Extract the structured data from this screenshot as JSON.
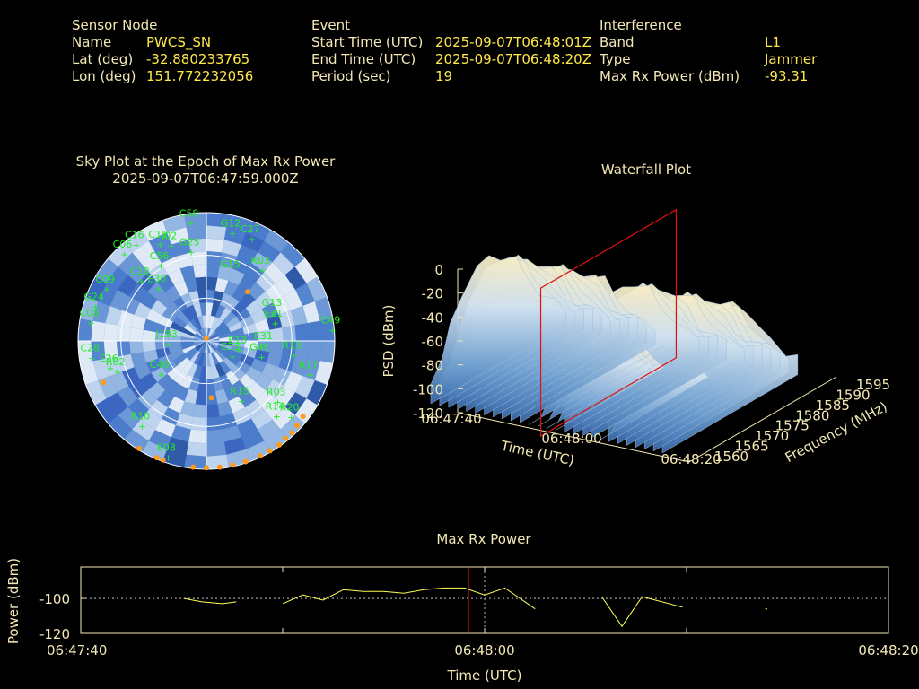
{
  "info": {
    "sensor_node": {
      "header": "Sensor Node",
      "rows": [
        {
          "label": "Name",
          "value": "PWCS_SN"
        },
        {
          "label": "Lat (deg)",
          "value": "-32.880233765"
        },
        {
          "label": "Lon (deg)",
          "value": "151.772232056"
        }
      ]
    },
    "event": {
      "header": "Event",
      "rows": [
        {
          "label": "Start Time (UTC)",
          "value": "2025-09-07T06:48:01Z"
        },
        {
          "label": "End Time (UTC)",
          "value": "2025-09-07T06:48:20Z"
        },
        {
          "label": "Period (sec)",
          "value": "19"
        }
      ]
    },
    "interference": {
      "header": "Interference",
      "rows": [
        {
          "label": "Band",
          "value": "L1"
        },
        {
          "label": "Type",
          "value": "Jammer"
        },
        {
          "label": "Max Rx Power (dBm)",
          "value": "-93.31"
        }
      ]
    }
  },
  "colors": {
    "text": "#f3e8b4",
    "value": "#ffe84a",
    "satellite": "#22ee22",
    "marker": "#ff9a1a",
    "trace": "#ffff55",
    "cursor": "#e01010",
    "axis": "#f3e8b4",
    "sky_dark": "#3f6fc6",
    "sky_light": "#d8e6f6"
  },
  "chart_data": [
    {
      "type": "scatter",
      "title": "Sky Plot at the Epoch of Max Rx Power",
      "subtitle": "2025-09-07T06:47:59.000Z",
      "rings_elevation_deg": [
        0,
        30,
        60
      ],
      "satellites": [
        {
          "id": "C58",
          "az": 352,
          "el": 2
        },
        {
          "id": "G12",
          "az": 12,
          "el": 8
        },
        {
          "id": "C27",
          "az": 22,
          "el": 8
        },
        {
          "id": "C16",
          "az": 325,
          "el": 2
        },
        {
          "id": "C11",
          "az": 335,
          "el": 10
        },
        {
          "id": "C06",
          "az": 318,
          "el": 2
        },
        {
          "id": "J02",
          "az": 340,
          "el": 14
        },
        {
          "id": "G25",
          "az": 350,
          "el": 22
        },
        {
          "id": "R03",
          "az": 35,
          "el": 24
        },
        {
          "id": "C56",
          "az": 330,
          "el": 24
        },
        {
          "id": "C09",
          "az": 300,
          "el": 8
        },
        {
          "id": "G15",
          "az": 18,
          "el": 36
        },
        {
          "id": "C10",
          "az": 315,
          "el": 24
        },
        {
          "id": "E30",
          "az": 320,
          "el": 36
        },
        {
          "id": "G13",
          "az": 62,
          "el": 38
        },
        {
          "id": "G24",
          "az": 290,
          "el": 6
        },
        {
          "id": "E21",
          "az": 70,
          "el": 40
        },
        {
          "id": "C49",
          "az": 82,
          "el": 2
        },
        {
          "id": "C08",
          "az": 282,
          "el": 6
        },
        {
          "id": "E31",
          "az": 88,
          "el": 50
        },
        {
          "id": "J193",
          "az": 275,
          "el": 62
        },
        {
          "id": "E33",
          "az": 110,
          "el": 72
        },
        {
          "id": "E13",
          "az": 95,
          "el": 68
        },
        {
          "id": "G41",
          "az": 100,
          "el": 52
        },
        {
          "id": "R13",
          "az": 95,
          "el": 30
        },
        {
          "id": "R17",
          "az": 105,
          "el": 16
        },
        {
          "id": "C28",
          "az": 265,
          "el": 8
        },
        {
          "id": "E26",
          "az": 258,
          "el": 20
        },
        {
          "id": "C40",
          "az": 240,
          "el": 52
        },
        {
          "id": "R02",
          "az": 255,
          "el": 24
        },
        {
          "id": "R15",
          "az": 148,
          "el": 46
        },
        {
          "id": "R03",
          "az": 128,
          "el": 28
        },
        {
          "id": "R14",
          "az": 135,
          "el": 22
        },
        {
          "id": "R10",
          "az": 220,
          "el": 18
        },
        {
          "id": "E08",
          "az": 200,
          "el": 8
        },
        {
          "id": "R20",
          "az": 130,
          "el": 14
        }
      ],
      "markers": [
        {
          "az": 40,
          "el": 45
        },
        {
          "az": 0,
          "el": 88
        },
        {
          "az": 175,
          "el": 50
        },
        {
          "az": 248,
          "el": 12
        },
        {
          "az": 128,
          "el": 4
        },
        {
          "az": 133,
          "el": 3
        },
        {
          "az": 137,
          "el": 2
        },
        {
          "az": 141,
          "el": 2
        },
        {
          "az": 145,
          "el": 1
        },
        {
          "az": 150,
          "el": 1
        },
        {
          "az": 155,
          "el": 1
        },
        {
          "az": 162,
          "el": 1
        },
        {
          "az": 168,
          "el": 1
        },
        {
          "az": 174,
          "el": 1
        },
        {
          "az": 180,
          "el": 1
        },
        {
          "az": 186,
          "el": 1
        },
        {
          "az": 200,
          "el": 1
        },
        {
          "az": 203,
          "el": 1
        },
        {
          "az": 212,
          "el": 1
        }
      ]
    },
    {
      "type": "surface",
      "title": "Waterfall Plot",
      "xlabel": "Time (UTC)",
      "ylabel": "Frequency (MHz)",
      "zlabel": "PSD (dBm)",
      "time_ticks": [
        "06:47:40",
        "06:48:00",
        "06:48:20"
      ],
      "time_range_sec": [
        0,
        40
      ],
      "freq_ticks": [
        1560,
        1565,
        1570,
        1575,
        1580,
        1585,
        1590,
        1595
      ],
      "psd_ticks": [
        0,
        -20,
        -40,
        -60,
        -80,
        -100,
        -120
      ],
      "zlim": [
        -120,
        0
      ],
      "cursor_time": "06:47:59",
      "profile": [
        {
          "f": 1560,
          "psd": -100
        },
        {
          "f": 1563,
          "psd": -90
        },
        {
          "f": 1565,
          "psd": -65
        },
        {
          "f": 1568,
          "psd": -42
        },
        {
          "f": 1572,
          "psd": -30
        },
        {
          "f": 1575,
          "psd": -25
        },
        {
          "f": 1578,
          "psd": -30
        },
        {
          "f": 1582,
          "psd": -42
        },
        {
          "f": 1585,
          "psd": -60
        },
        {
          "f": 1588,
          "psd": -80
        },
        {
          "f": 1592,
          "psd": -95
        },
        {
          "f": 1595,
          "psd": -105
        }
      ]
    },
    {
      "type": "line",
      "title": "Max Rx Power",
      "xlabel": "Time (UTC)",
      "ylabel": "Power (dBm)",
      "x_ticks": [
        "06:47:40",
        "06:48:00",
        "06:48:20"
      ],
      "x_range_sec": [
        0,
        40
      ],
      "y_ticks": [
        -100,
        -120
      ],
      "ylim": [
        -120,
        -82
      ],
      "cursor_sec": 19.2,
      "segments": [
        [
          [
            5.1,
            -100
          ],
          [
            6.0,
            -102
          ],
          [
            7.0,
            -103
          ],
          [
            7.7,
            -102
          ]
        ],
        [
          [
            10.0,
            -103
          ],
          [
            11.0,
            -98
          ],
          [
            12.0,
            -101
          ],
          [
            13.0,
            -95
          ],
          [
            14.0,
            -96
          ],
          [
            15.0,
            -96
          ],
          [
            16.0,
            -97
          ],
          [
            17.0,
            -95
          ],
          [
            18.0,
            -94
          ],
          [
            19.0,
            -94
          ],
          [
            20.0,
            -98
          ],
          [
            21.0,
            -94
          ],
          [
            22.5,
            -106
          ]
        ],
        [
          [
            25.8,
            -99
          ],
          [
            26.8,
            -116
          ],
          [
            27.8,
            -99
          ],
          [
            29.8,
            -105
          ]
        ],
        [
          [
            33.9,
            -106
          ],
          [
            34.0,
            -106
          ]
        ]
      ]
    }
  ]
}
